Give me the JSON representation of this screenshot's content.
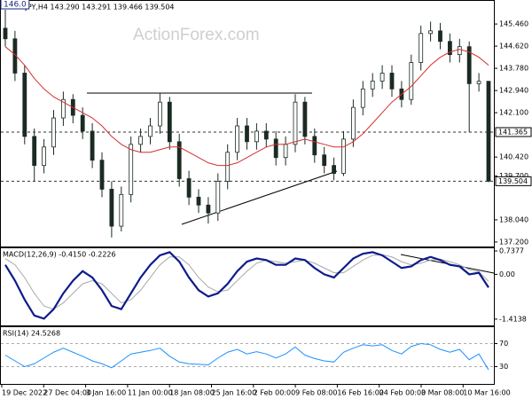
{
  "chart_data": [
    {
      "type": "candlestick",
      "title": "EURJPY,H4 143.290 143.291 139.466 139.504",
      "watermark": "ActionForex.com",
      "color": "#1b2b22",
      "ylim": [
        137.03,
        146.37
      ],
      "yticks": [
        {
          "value": 145.46,
          "label": "145.460"
        },
        {
          "value": 144.62,
          "label": "144.620"
        },
        {
          "value": 143.78,
          "label": "143.780"
        },
        {
          "value": 142.94,
          "label": "142.940"
        },
        {
          "value": 142.1,
          "label": "142.100"
        },
        {
          "value": 140.42,
          "label": "140.420"
        },
        {
          "value": 139.7,
          "label": "139.700"
        },
        {
          "value": 138.04,
          "label": "138.040"
        },
        {
          "value": 137.2,
          "label": "137.200"
        }
      ],
      "open": [
        145.3,
        144.9,
        143.6,
        141.2,
        140.1,
        140.8,
        141.9,
        142.6,
        142.0,
        141.4,
        140.3,
        139.2,
        137.8,
        139.0,
        140.9,
        141.2,
        141.6,
        142.5,
        141.0,
        139.6,
        138.9,
        138.6,
        138.3,
        139.5,
        140.6,
        141.6,
        141.0,
        141.4,
        141.1,
        140.4,
        140.9,
        142.5,
        141.2,
        140.5,
        140.1,
        139.8,
        141.1,
        142.3,
        143.0,
        143.3,
        143.6,
        143.0,
        142.6,
        144.0,
        145.1,
        145.2,
        144.8,
        144.3,
        144.6,
        143.2,
        143.29
      ],
      "high": [
        146.0,
        145.2,
        143.9,
        141.5,
        141.1,
        142.2,
        142.9,
        142.8,
        142.3,
        141.7,
        140.6,
        139.5,
        139.3,
        141.2,
        141.5,
        141.9,
        142.84,
        142.7,
        141.3,
        139.9,
        139.2,
        138.9,
        139.8,
        140.9,
        141.9,
        141.9,
        141.7,
        141.7,
        141.4,
        141.2,
        142.8,
        142.7,
        141.5,
        140.8,
        140.4,
        141.4,
        142.6,
        143.3,
        143.6,
        143.9,
        143.9,
        143.3,
        144.3,
        145.4,
        145.55,
        145.5,
        145.1,
        144.9,
        144.8,
        143.6,
        143.291
      ],
      "low": [
        144.6,
        143.3,
        140.9,
        139.5,
        139.8,
        140.5,
        141.6,
        141.7,
        141.1,
        140.0,
        138.9,
        137.37,
        137.6,
        138.7,
        140.6,
        140.9,
        141.3,
        140.7,
        139.3,
        138.6,
        138.3,
        137.9,
        138.0,
        139.2,
        140.3,
        140.7,
        140.7,
        140.8,
        140.1,
        140.1,
        140.6,
        140.9,
        140.2,
        139.8,
        139.54,
        139.7,
        140.8,
        142.0,
        142.7,
        143.0,
        142.7,
        142.3,
        142.4,
        143.7,
        144.8,
        144.5,
        144.0,
        144.0,
        141.36,
        142.9,
        139.466
      ],
      "close": [
        144.9,
        143.6,
        141.2,
        140.1,
        140.8,
        141.9,
        142.6,
        142.0,
        141.4,
        140.3,
        139.2,
        137.8,
        139.0,
        140.9,
        141.2,
        141.6,
        142.5,
        141.0,
        139.6,
        138.9,
        138.6,
        138.3,
        139.5,
        140.6,
        141.6,
        141.0,
        141.4,
        141.1,
        140.4,
        140.9,
        142.5,
        141.2,
        140.5,
        140.1,
        139.8,
        141.1,
        142.3,
        143.0,
        143.3,
        143.6,
        143.0,
        142.6,
        144.0,
        145.1,
        145.2,
        144.8,
        144.3,
        144.6,
        143.2,
        143.29,
        139.504
      ],
      "ma": {
        "color": "#d32f2f",
        "values": [
          144.6,
          144.3,
          143.9,
          143.4,
          143.0,
          142.7,
          142.5,
          142.3,
          142.1,
          141.9,
          141.6,
          141.2,
          140.9,
          140.7,
          140.6,
          140.6,
          140.7,
          140.8,
          140.8,
          140.6,
          140.4,
          140.2,
          140.1,
          140.1,
          140.2,
          140.4,
          140.6,
          140.8,
          140.9,
          140.9,
          141.0,
          141.1,
          141.0,
          140.9,
          140.8,
          140.8,
          141.0,
          141.3,
          141.7,
          142.1,
          142.5,
          142.8,
          143.1,
          143.5,
          143.9,
          144.2,
          144.4,
          144.5,
          144.4,
          144.2,
          143.9
        ]
      },
      "annotations": [
        {
          "value": 146.0,
          "label": "146.0"
        }
      ],
      "hlines": [
        141.365,
        139.504
      ]
    },
    {
      "type": "macd",
      "title": "MACD(12,26,9) -0.4150 -0.2226",
      "ylim": [
        -1.612,
        0.851
      ],
      "yticks": [
        0.7377,
        {
          "value": 0,
          "label": "0.00"
        },
        -1.4138
      ],
      "macd": {
        "color": "#0d1b8c",
        "values": [
          0.3,
          -0.2,
          -0.8,
          -1.3,
          -1.4,
          -1.1,
          -0.6,
          -0.2,
          0.1,
          -0.1,
          -0.5,
          -1.0,
          -1.1,
          -0.6,
          -0.1,
          0.3,
          0.6,
          0.7,
          0.4,
          -0.1,
          -0.5,
          -0.7,
          -0.6,
          -0.3,
          0.1,
          0.4,
          0.5,
          0.45,
          0.3,
          0.3,
          0.5,
          0.45,
          0.2,
          0.0,
          -0.1,
          0.2,
          0.5,
          0.65,
          0.7,
          0.6,
          0.4,
          0.2,
          0.25,
          0.45,
          0.55,
          0.45,
          0.3,
          0.25,
          0.0,
          0.05,
          -0.415
        ]
      },
      "signal": {
        "color": "#a8a8a8",
        "values": [
          0.5,
          0.3,
          -0.1,
          -0.6,
          -1.0,
          -1.1,
          -0.9,
          -0.6,
          -0.3,
          -0.2,
          -0.3,
          -0.6,
          -0.9,
          -0.8,
          -0.5,
          -0.1,
          0.3,
          0.55,
          0.55,
          0.3,
          -0.1,
          -0.4,
          -0.55,
          -0.5,
          -0.2,
          0.1,
          0.35,
          0.45,
          0.4,
          0.35,
          0.4,
          0.45,
          0.35,
          0.2,
          0.05,
          0.05,
          0.25,
          0.45,
          0.6,
          0.62,
          0.55,
          0.4,
          0.3,
          0.35,
          0.45,
          0.48,
          0.4,
          0.3,
          0.15,
          0.08,
          -0.2226
        ]
      }
    },
    {
      "type": "rsi",
      "title": "RSI(14) 24.5268",
      "ylim": [
        0,
        100
      ],
      "yticks": [
        70,
        30
      ],
      "level_lines": true,
      "color": "#1e90ff",
      "values": [
        50,
        40,
        30,
        35,
        45,
        55,
        62,
        55,
        48,
        40,
        35,
        28,
        40,
        52,
        55,
        58,
        62,
        48,
        38,
        35,
        34,
        33,
        45,
        55,
        60,
        52,
        56,
        52,
        45,
        52,
        64,
        50,
        44,
        40,
        38,
        55,
        62,
        68,
        66,
        68,
        58,
        52,
        65,
        70,
        68,
        60,
        55,
        60,
        42,
        52,
        24.5268
      ],
      "x_labels": [
        "19 Dec 2022",
        "27 Dec 04:00",
        "3 Jan 16:00",
        "11 Jan 00:00",
        "18 Jan 08:00",
        "25 Jan 16:00",
        "2 Feb 00:00",
        "9 Feb 08:00",
        "16 Feb 16:00",
        "24 Feb 00:00",
        "3 Mar 08:00",
        "10 Mar 16:00"
      ]
    }
  ]
}
